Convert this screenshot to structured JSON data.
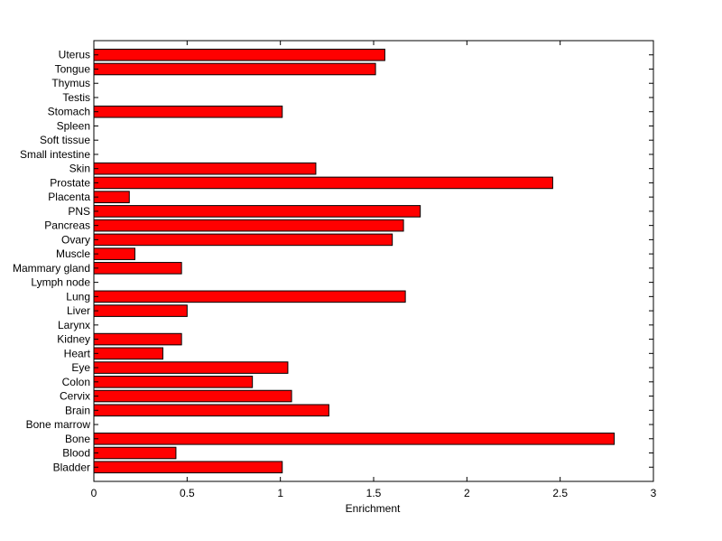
{
  "chart_data": {
    "type": "bar",
    "orientation": "horizontal",
    "title": "",
    "xlabel": "Enrichment",
    "ylabel": "",
    "xlim": [
      0,
      3
    ],
    "xticks": [
      "0",
      "0.5",
      "1",
      "1.5",
      "2",
      "2.5",
      "3"
    ],
    "grid": false,
    "legend": "none",
    "bar_color": "#ff0000",
    "bar_edge_color": "#000000",
    "categories": [
      "Uterus",
      "Tongue",
      "Thymus",
      "Testis",
      "Stomach",
      "Spleen",
      "Soft tissue",
      "Small intestine",
      "Skin",
      "Prostate",
      "Placenta",
      "PNS",
      "Pancreas",
      "Ovary",
      "Muscle",
      "Mammary gland",
      "Lymph node",
      "Lung",
      "Liver",
      "Larynx",
      "Kidney",
      "Heart",
      "Eye",
      "Colon",
      "Cervix",
      "Brain",
      "Bone marrow",
      "Bone",
      "Blood",
      "Bladder"
    ],
    "values": [
      1.56,
      1.51,
      0,
      0,
      1.01,
      0,
      0,
      0,
      1.19,
      2.46,
      0.19,
      1.75,
      1.66,
      1.6,
      0.22,
      0.47,
      0,
      1.67,
      0.5,
      0,
      0.47,
      0.37,
      1.04,
      0.85,
      1.06,
      1.26,
      0,
      2.79,
      0.44,
      1.01
    ]
  }
}
